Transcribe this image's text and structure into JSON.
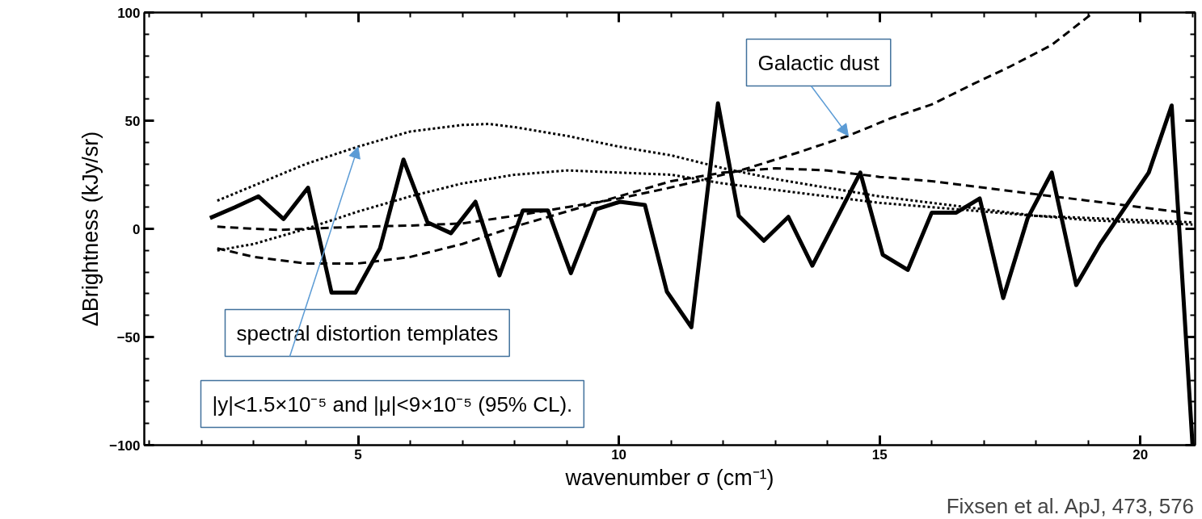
{
  "chart_data": {
    "type": "line",
    "xlabel": "wavenumber σ (cm⁻¹)",
    "ylabel": "ΔBrightness (kJy/sr)",
    "xlim": [
      0.9,
      21.05
    ],
    "ylim": [
      -100,
      100
    ],
    "xticks": [
      5,
      10,
      15,
      20
    ],
    "yticks": [
      -100,
      -50,
      0,
      50,
      100
    ],
    "grid": false,
    "marker": "none",
    "series": [
      {
        "color": "#000000",
        "line_style": "solid",
        "x": [
          2.16,
          2.64,
          3.09,
          3.57,
          4.04,
          4.49,
          4.95,
          5.42,
          5.87,
          6.33,
          6.78,
          7.25,
          7.71,
          8.16,
          8.64,
          9.08,
          9.56,
          10.02,
          10.5,
          10.92,
          11.39,
          11.9,
          12.3,
          12.78,
          13.25,
          13.71,
          14.63,
          15.06,
          15.54,
          16.0,
          16.47,
          16.92,
          17.37,
          17.84,
          18.3,
          18.77,
          19.23,
          20.16,
          20.6,
          21.0
        ],
        "values": [
          5,
          10,
          15,
          4.5,
          19,
          -29.5,
          -29.5,
          -9,
          32,
          3,
          -2,
          12.5,
          -21.5,
          8.5,
          8.5,
          -20.5,
          9,
          12.5,
          11,
          -29,
          -45.5,
          58,
          6,
          -5.5,
          5.5,
          -17,
          26,
          -12,
          -19,
          7.5,
          7.5,
          14,
          -32,
          5,
          26,
          -26,
          -7,
          26,
          57,
          -100
        ]
      },
      {
        "color": "#000000",
        "line_style": "dotted",
        "x": [
          2.3,
          3,
          4,
          5,
          6,
          7,
          7.5,
          8,
          9,
          10,
          11,
          12,
          13,
          14,
          15,
          16,
          17,
          18,
          19,
          20,
          21
        ],
        "values": [
          13,
          20,
          30,
          38,
          45,
          48,
          48.5,
          47,
          43,
          38,
          34,
          28,
          23,
          19,
          15,
          12,
          9,
          6,
          4,
          3,
          2
        ]
      },
      {
        "color": "#000000",
        "line_style": "dotted",
        "x": [
          2.3,
          3,
          4,
          5,
          6,
          7,
          8,
          9,
          10,
          11,
          12,
          13,
          14,
          15,
          16,
          17,
          18,
          19,
          20,
          21
        ],
        "values": [
          -10,
          -7,
          0,
          8,
          15,
          21,
          25,
          27,
          26,
          25,
          21,
          18,
          15,
          12,
          10,
          8,
          6,
          5,
          4,
          3
        ]
      },
      {
        "color": "#000000",
        "line_style": "dashed",
        "x": [
          2.3,
          3,
          4,
          5,
          6,
          7,
          8,
          9,
          10,
          11,
          12,
          13,
          14,
          15,
          16,
          17,
          18,
          19,
          20,
          21
        ],
        "values": [
          -9,
          -13,
          -16,
          -16,
          -13,
          -7,
          1,
          8,
          15,
          22,
          26,
          28,
          27,
          24,
          22,
          19,
          16,
          13,
          10,
          7
        ]
      },
      {
        "color": "#000000",
        "line_style": "dashed",
        "x": [
          2.3,
          3,
          3.5,
          4,
          5,
          6,
          7,
          8,
          9,
          10,
          10.9,
          11.5,
          12.4,
          13.4,
          14.4,
          15.2,
          16,
          16.8,
          17.5,
          18.3,
          19.1
        ],
        "values": [
          1,
          0,
          -0.5,
          0,
          1,
          1.5,
          2.5,
          6,
          10,
          14,
          18.6,
          22,
          27.5,
          35,
          43,
          51,
          57.5,
          67,
          75,
          85,
          100
        ]
      }
    ],
    "annotations": [
      {
        "text": "Galactic dust",
        "x": 14.4,
        "y": 43
      },
      {
        "text": "spectral distortion templates",
        "x": 5,
        "y": 38
      },
      "|y|<1.5×10⁻⁵ and |μ|<9×10⁻⁵ (95% CL).",
      "Fixsen et al. ApJ, 473, 576"
    ]
  }
}
